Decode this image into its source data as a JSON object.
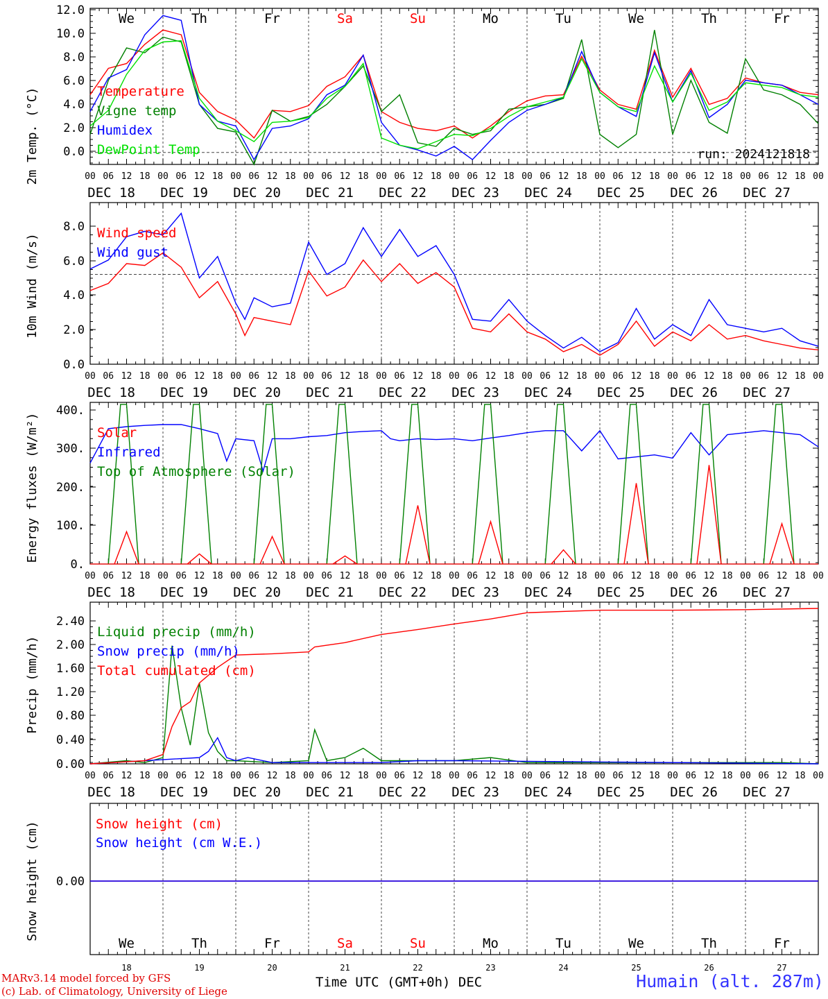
{
  "colors": {
    "red": "#ff0000",
    "green": "#008000",
    "blue": "#0000ff",
    "lightgreen": "#00e000",
    "grey": "#555555"
  },
  "x_axis": {
    "hour_labels": [
      "00",
      "06",
      "12",
      "18"
    ],
    "final_hour_label": "00",
    "dates": [
      "DEC 18",
      "DEC 19",
      "DEC 20",
      "DEC 21",
      "DEC 22",
      "DEC 23",
      "DEC 24",
      "DEC 25",
      "DEC 26",
      "DEC 27"
    ],
    "day_numbers": [
      "18",
      "19",
      "20",
      "21",
      "22",
      "23",
      "24",
      "25",
      "26",
      "27"
    ]
  },
  "weekdays": [
    {
      "label": "We",
      "weekend": false
    },
    {
      "label": "Th",
      "weekend": false
    },
    {
      "label": "Fr",
      "weekend": false
    },
    {
      "label": "Sa",
      "weekend": true
    },
    {
      "label": "Su",
      "weekend": true
    },
    {
      "label": "Mo",
      "weekend": false
    },
    {
      "label": "Tu",
      "weekend": false
    },
    {
      "label": "We",
      "weekend": false
    },
    {
      "label": "Th",
      "weekend": false
    },
    {
      "label": "Fr",
      "weekend": false
    }
  ],
  "run_label": "run: 2024121818",
  "footer": {
    "model": "MARv3.14 model forced by GFS",
    "credit": "(c) Lab. of Climatology, University of Liege",
    "time_caption": "Time UTC (GMT+0h) DEC",
    "station": "Humain (alt. 287m)"
  },
  "chart_data": [
    {
      "type": "line",
      "ylabel": "2m Temp. (°C)",
      "ylim": [
        -1,
        12
      ],
      "yticks": [
        "12.0",
        "10.0",
        "8.0",
        "6.0",
        "4.0",
        "2.0",
        "0.0"
      ],
      "reference_line": 0,
      "x_unit": "hours since DEC 18 00 UTC",
      "legend": [
        "Temperature",
        "Vigne temp",
        "Humidex",
        "DewPoint Temp"
      ],
      "series": [
        {
          "name": "Temperature",
          "color": "red",
          "x": [
            0,
            6,
            12,
            18,
            24,
            30,
            36,
            42,
            48,
            54,
            60,
            66,
            72,
            78,
            84,
            90,
            96,
            102,
            108,
            114,
            120,
            126,
            132,
            138,
            144,
            150,
            156,
            162,
            168,
            174,
            180,
            186,
            192,
            198,
            204,
            210,
            216,
            222,
            228,
            234,
            240
          ],
          "y": [
            4.8,
            7.0,
            7.4,
            9.0,
            10.2,
            9.8,
            5.0,
            3.4,
            2.7,
            1.2,
            3.5,
            3.4,
            3.9,
            5.5,
            6.3,
            8.1,
            3.4,
            2.5,
            2.0,
            1.8,
            2.2,
            1.2,
            2.2,
            3.4,
            4.3,
            4.7,
            4.8,
            8.0,
            5.2,
            4.0,
            3.6,
            8.5,
            4.6,
            7.0,
            4.0,
            4.5,
            6.2,
            5.8,
            5.6,
            5.0,
            4.8
          ]
        },
        {
          "name": "Vigne temp",
          "color": "green",
          "x": [
            0,
            6,
            12,
            18,
            24,
            30,
            36,
            42,
            48,
            54,
            60,
            66,
            72,
            78,
            84,
            90,
            96,
            102,
            108,
            114,
            120,
            126,
            132,
            138,
            144,
            150,
            156,
            162,
            168,
            174,
            180,
            186,
            192,
            198,
            204,
            210,
            216,
            222,
            228,
            234,
            240
          ],
          "y": [
            1.5,
            6.0,
            8.7,
            8.3,
            9.6,
            9.2,
            4.0,
            2.0,
            1.7,
            -1.0,
            3.5,
            2.6,
            3.0,
            4.0,
            5.5,
            7.2,
            3.4,
            4.8,
            0.8,
            0.5,
            2.0,
            1.5,
            1.8,
            3.6,
            3.8,
            4.0,
            4.5,
            9.4,
            1.5,
            0.4,
            1.5,
            10.2,
            1.5,
            6.0,
            2.5,
            1.6,
            7.8,
            5.2,
            4.8,
            4.0,
            2.4
          ]
        },
        {
          "name": "Humidex",
          "color": "blue",
          "x": [
            0,
            6,
            12,
            18,
            24,
            30,
            36,
            42,
            48,
            54,
            60,
            66,
            72,
            78,
            84,
            90,
            96,
            102,
            108,
            114,
            120,
            126,
            132,
            138,
            144,
            150,
            156,
            162,
            168,
            174,
            180,
            186,
            192,
            198,
            204,
            210,
            216,
            222,
            228,
            234,
            240
          ],
          "y": [
            3.4,
            6.2,
            6.9,
            9.8,
            11.4,
            11.0,
            4.0,
            2.6,
            2.2,
            -0.6,
            2.0,
            2.2,
            2.8,
            4.8,
            5.6,
            8.1,
            2.5,
            0.6,
            0.2,
            -0.3,
            0.5,
            -0.6,
            1.0,
            2.5,
            3.5,
            4.0,
            4.6,
            8.4,
            5.0,
            3.8,
            3.0,
            8.3,
            4.2,
            6.8,
            2.9,
            4.0,
            6.0,
            5.8,
            5.6,
            4.8,
            4.0
          ]
        },
        {
          "name": "DewPoint Temp",
          "color": "lightgreen",
          "x": [
            0,
            6,
            12,
            18,
            24,
            30,
            36,
            42,
            48,
            54,
            60,
            66,
            72,
            78,
            84,
            90,
            96,
            102,
            108,
            114,
            120,
            126,
            132,
            138,
            144,
            150,
            156,
            162,
            168,
            174,
            180,
            186,
            192,
            198,
            204,
            210,
            216,
            222,
            228,
            234,
            240
          ],
          "y": [
            2.2,
            3.5,
            6.5,
            8.5,
            9.2,
            9.3,
            4.5,
            2.6,
            1.8,
            0.9,
            2.5,
            2.6,
            2.9,
            4.5,
            5.5,
            7.4,
            1.2,
            0.6,
            0.3,
            0.9,
            1.5,
            1.4,
            2.0,
            3.0,
            3.8,
            4.2,
            4.6,
            7.8,
            5.0,
            3.8,
            3.4,
            7.2,
            4.2,
            6.6,
            3.5,
            4.2,
            5.8,
            5.6,
            5.4,
            4.8,
            4.6
          ]
        }
      ]
    },
    {
      "type": "line",
      "ylabel": "10m Wind (m/s)",
      "ylim": [
        0,
        9
      ],
      "yticks": [
        "8.0",
        "6.0",
        "4.0",
        "2.0",
        "0.0"
      ],
      "reference_line": 5,
      "x_unit": "hours since DEC 18 00 UTC",
      "legend": [
        "Wind speed",
        "Wind gust"
      ],
      "series": [
        {
          "name": "Wind speed",
          "color": "red",
          "x": [
            0,
            6,
            12,
            18,
            24,
            30,
            36,
            42,
            48,
            51,
            54,
            60,
            66,
            72,
            78,
            84,
            90,
            96,
            102,
            108,
            114,
            120,
            126,
            132,
            138,
            144,
            150,
            156,
            162,
            168,
            174,
            180,
            186,
            192,
            198,
            204,
            210,
            216,
            222,
            228,
            234,
            240
          ],
          "y": [
            4.1,
            4.5,
            5.6,
            5.5,
            6.2,
            5.4,
            3.7,
            4.6,
            2.8,
            1.6,
            2.6,
            2.4,
            2.2,
            5.2,
            3.8,
            4.3,
            5.8,
            4.6,
            5.6,
            4.5,
            5.1,
            4.3,
            2.0,
            1.8,
            2.8,
            1.8,
            1.4,
            0.7,
            1.1,
            0.5,
            1.1,
            2.4,
            1.0,
            1.8,
            1.3,
            2.2,
            1.4,
            1.6,
            1.3,
            1.1,
            0.9,
            0.8
          ]
        },
        {
          "name": "Wind gust",
          "color": "blue",
          "x": [
            0,
            6,
            12,
            18,
            24,
            30,
            36,
            42,
            48,
            51,
            54,
            60,
            66,
            72,
            78,
            84,
            90,
            96,
            102,
            108,
            114,
            120,
            126,
            132,
            138,
            144,
            150,
            156,
            162,
            168,
            174,
            180,
            186,
            192,
            198,
            204,
            210,
            216,
            222,
            228,
            234,
            240
          ],
          "y": [
            5.3,
            5.8,
            7.1,
            7.4,
            7.2,
            8.4,
            4.8,
            6.0,
            3.4,
            2.5,
            3.7,
            3.2,
            3.4,
            6.8,
            5.0,
            5.6,
            7.6,
            6.0,
            7.5,
            6.0,
            6.6,
            5.0,
            2.5,
            2.4,
            3.6,
            2.4,
            1.6,
            0.9,
            1.5,
            0.7,
            1.2,
            3.1,
            1.4,
            2.2,
            1.6,
            3.6,
            2.2,
            2.0,
            1.8,
            2.0,
            1.3,
            1.0
          ]
        }
      ]
    },
    {
      "type": "line",
      "ylabel": "Energy fluxes (W/m²)",
      "ylim": [
        0,
        400
      ],
      "yticks": [
        "400.",
        "300.",
        "200.",
        "100.",
        "0."
      ],
      "x_unit": "hours since DEC 18 00 UTC",
      "legend": [
        "Solar",
        "Infrared",
        "Top of Atmosphere (Solar)"
      ],
      "toa_peak": 395,
      "solar_peaks": [
        80,
        25,
        68,
        20,
        145,
        105,
        35,
        200,
        245,
        100
      ],
      "series": [
        {
          "name": "Infrared",
          "color": "blue",
          "x": [
            0,
            6,
            12,
            18,
            24,
            30,
            36,
            42,
            45,
            48,
            54,
            57,
            60,
            66,
            72,
            78,
            84,
            90,
            96,
            99,
            102,
            108,
            114,
            120,
            126,
            132,
            138,
            144,
            150,
            156,
            162,
            168,
            174,
            180,
            186,
            192,
            198,
            204,
            210,
            216,
            222,
            228,
            234,
            240
          ],
          "y": [
            250,
            335,
            340,
            343,
            345,
            345,
            335,
            323,
            255,
            310,
            305,
            230,
            310,
            310,
            315,
            318,
            325,
            328,
            330,
            310,
            305,
            310,
            308,
            310,
            305,
            312,
            318,
            325,
            330,
            330,
            280,
            330,
            260,
            265,
            270,
            262,
            325,
            270,
            320,
            325,
            330,
            325,
            320,
            290
          ]
        }
      ]
    },
    {
      "type": "line",
      "ylabel": "Precip (mm/h)",
      "ylim": [
        0,
        2.6
      ],
      "yticks": [
        "2.40",
        "2.00",
        "1.60",
        "1.20",
        "0.80",
        "0.40",
        "0.00"
      ],
      "x_unit": "hours since DEC 18 00 UTC",
      "legend": [
        "Liquid precip (mm/h)",
        "Snow precip (mm/h)",
        "Total cumulated (cm)"
      ],
      "series": [
        {
          "name": "Liquid precip (mm/h)",
          "color": "green",
          "x": [
            0,
            12,
            18,
            24,
            27,
            30,
            33,
            36,
            39,
            42,
            45,
            48,
            60,
            72,
            74,
            78,
            84,
            90,
            96,
            108,
            120,
            132,
            144,
            156,
            168,
            180,
            192,
            204,
            216,
            228,
            240
          ],
          "y": [
            0,
            0.05,
            0.02,
            0.1,
            1.9,
            0.9,
            0.3,
            1.3,
            0.5,
            0.2,
            0.05,
            0.05,
            0.02,
            0.05,
            0.55,
            0.05,
            0.1,
            0.25,
            0.05,
            0.05,
            0.05,
            0.1,
            0.02,
            0.02,
            0.02,
            0.02,
            0.02,
            0.02,
            0.02,
            0.02,
            0
          ]
        },
        {
          "name": "Snow precip (mm/h)",
          "color": "blue",
          "x": [
            0,
            36,
            39,
            42,
            45,
            48,
            52,
            60,
            72,
            84,
            96,
            108,
            120,
            240
          ],
          "y": [
            0,
            0.1,
            0.2,
            0.42,
            0.1,
            0.05,
            0.1,
            0.02,
            0.02,
            0.02,
            0.02,
            0.05,
            0.05,
            0
          ]
        },
        {
          "name": "Total cumulated (cm)",
          "color": "red",
          "x": [
            0,
            18,
            24,
            27,
            30,
            33,
            36,
            42,
            48,
            60,
            72,
            74,
            84,
            96,
            108,
            120,
            132,
            144,
            168,
            192,
            216,
            240
          ],
          "y": [
            0,
            0.05,
            0.15,
            0.6,
            0.9,
            1.0,
            1.3,
            1.55,
            1.75,
            1.77,
            1.8,
            1.88,
            1.95,
            2.08,
            2.16,
            2.25,
            2.33,
            2.43,
            2.47,
            2.47,
            2.48,
            2.5
          ]
        }
      ]
    },
    {
      "type": "line",
      "ylabel": "Snow height (cm)",
      "ylim": [
        -1,
        1
      ],
      "yticks": [
        "0.00"
      ],
      "x_unit": "hours since DEC 18 00 UTC",
      "legend": [
        "Snow height (cm)",
        "Snow height (cm W.E.)"
      ],
      "series": [
        {
          "name": "Snow height (cm)",
          "color": "red",
          "x": [
            0,
            240
          ],
          "y": [
            0,
            0
          ]
        },
        {
          "name": "Snow height (cm W.E.)",
          "color": "blue",
          "x": [
            0,
            240
          ],
          "y": [
            0,
            0
          ]
        }
      ]
    }
  ]
}
